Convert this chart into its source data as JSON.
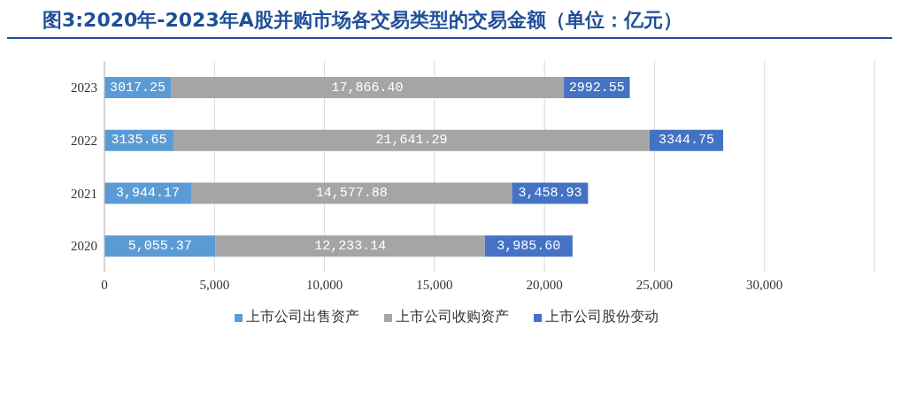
{
  "chart_data": {
    "type": "bar",
    "orientation": "horizontal",
    "stacked": true,
    "title": "图3:2020年-2023年A股并购市场各交易类型的交易金额（单位：亿元）",
    "categories": [
      "2023",
      "2022",
      "2021",
      "2020"
    ],
    "series": [
      {
        "name": "上市公司出售资产",
        "color": "#5b9bd5",
        "values": [
          3017.25,
          3135.65,
          3944.17,
          5055.37
        ],
        "value_labels": [
          "3017.25",
          "3135.65",
          "3,944.17",
          "5,055.37"
        ]
      },
      {
        "name": "上市公司收购资产",
        "color": "#a5a5a5",
        "values": [
          17866.4,
          21641.29,
          14577.88,
          12233.14
        ],
        "value_labels": [
          "17,866.40",
          "21,641.29",
          "14,577.88",
          "12,233.14"
        ]
      },
      {
        "name": "上市公司股份变动",
        "color": "#4472c4",
        "values": [
          2992.55,
          3344.75,
          3458.93,
          3985.6
        ],
        "value_labels": [
          "2992.55",
          "3344.75",
          "3,458.93",
          "3,985.60"
        ]
      }
    ],
    "xlim": [
      0,
      35000
    ],
    "xticks": [
      0,
      {
        "value": 5000,
        "label": "5,000"
      },
      {
        "value": 10000,
        "label": "10,000"
      },
      {
        "value": 15000,
        "label": "15,000"
      },
      {
        "value": 20000,
        "label": "20,000"
      },
      {
        "value": 25000,
        "label": "25,000"
      },
      {
        "value": 30000,
        "label": "30,000"
      }
    ],
    "grid": "x",
    "legend": "bottom"
  }
}
